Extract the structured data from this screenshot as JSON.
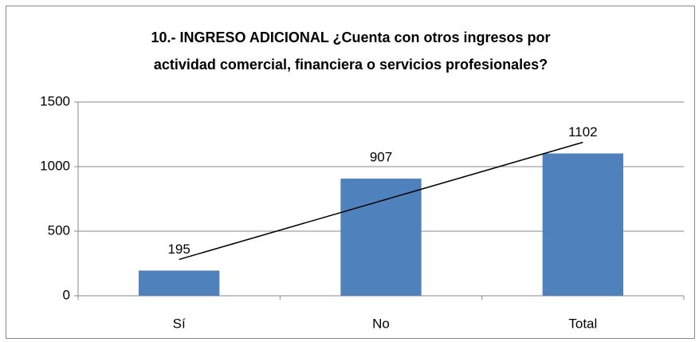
{
  "chart_data": {
    "type": "bar",
    "title": [
      "10.- INGRESO ADICIONAL ¿Cuenta con otros ingresos por",
      "actividad comercial, financiera o servicios profesionales?"
    ],
    "categories": [
      "Sí",
      "No",
      "Total"
    ],
    "values": [
      195,
      907,
      1102
    ],
    "color": "#4f81bd",
    "ylim": [
      0,
      1500
    ],
    "yticks": [
      0,
      500,
      1000,
      1500
    ],
    "grid": true,
    "data_labels": true,
    "trendline": "linear"
  }
}
